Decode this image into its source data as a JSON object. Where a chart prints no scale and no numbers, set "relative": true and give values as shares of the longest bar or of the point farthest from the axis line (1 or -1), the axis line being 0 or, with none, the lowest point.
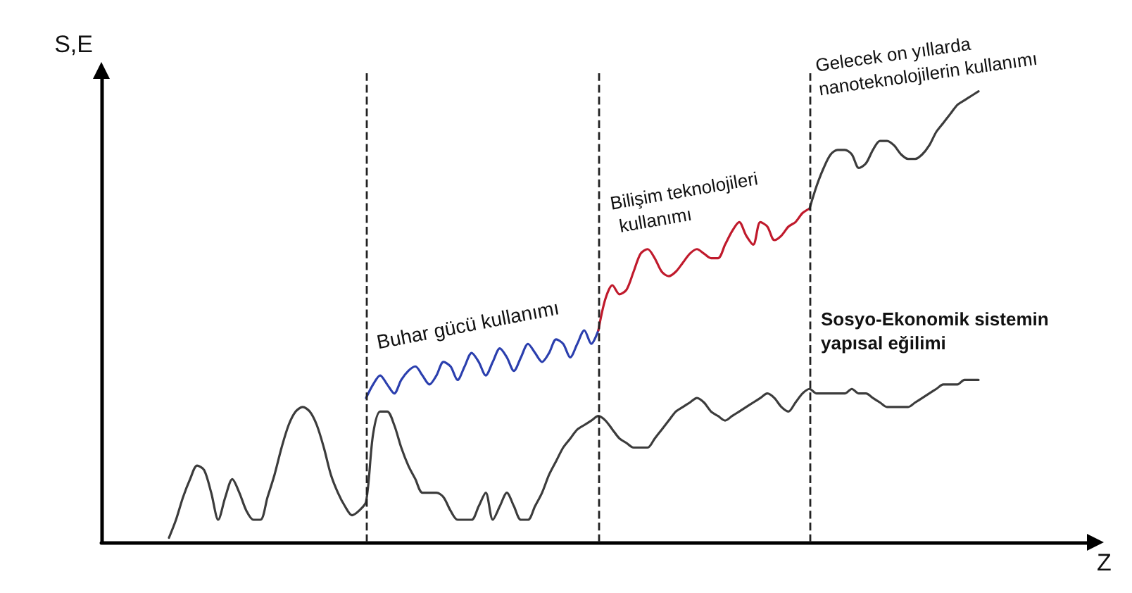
{
  "chart_data": {
    "type": "line",
    "relative": true,
    "xlabel": "Z",
    "ylabel": "S,E",
    "legend": false,
    "grid": false,
    "marker": "none",
    "line_style": "solid",
    "categories": [
      null,
      null,
      null,
      null,
      null,
      null,
      null,
      null,
      null,
      null,
      null,
      null,
      null,
      null,
      null,
      null,
      null,
      null,
      null,
      null,
      null,
      null,
      null,
      null,
      null,
      null,
      null,
      null,
      null,
      null,
      null,
      null,
      null,
      null,
      null,
      null,
      null,
      null,
      null,
      null,
      null,
      null,
      null,
      null,
      null,
      null,
      null,
      null,
      null,
      null,
      null,
      null,
      null,
      null,
      null,
      null,
      null,
      null,
      null,
      null,
      null,
      null,
      null,
      null,
      null,
      null,
      null,
      null,
      null,
      null,
      null,
      null,
      null,
      null,
      null,
      null,
      null,
      null,
      null,
      null,
      null,
      null,
      null,
      null,
      null,
      null,
      null,
      null,
      null,
      null,
      null,
      null,
      null,
      null,
      null,
      null,
      null,
      null,
      null,
      null,
      null,
      null,
      null,
      null,
      null,
      null,
      null,
      null,
      null,
      null,
      null,
      null,
      null,
      null,
      null,
      null
    ],
    "series": [
      {
        "name": "Sosyo-Ekonomik sistemin yapısal eğilimi",
        "color": "#3c3c3c",
        "values": [
          0.01,
          0.05,
          0.1,
          0.14,
          0.17,
          0.16,
          0.11,
          0.05,
          0.1,
          0.14,
          0.11,
          0.07,
          0.05,
          0.05,
          0.1,
          0.15,
          0.21,
          0.26,
          0.29,
          0.3,
          0.29,
          0.26,
          0.21,
          0.15,
          0.11,
          0.08,
          0.06,
          0.07,
          0.09,
          0.24,
          0.29,
          0.29,
          0.26,
          0.21,
          0.17,
          0.14,
          0.11,
          0.11,
          0.11,
          0.1,
          0.07,
          0.05,
          0.05,
          0.05,
          0.08,
          0.11,
          0.05,
          0.08,
          0.11,
          0.08,
          0.05,
          0.05,
          0.08,
          0.11,
          0.15,
          0.18,
          0.21,
          0.23,
          0.25,
          0.26,
          0.27,
          0.28,
          0.27,
          0.25,
          0.23,
          0.22,
          0.21,
          0.21,
          0.21,
          0.23,
          0.25,
          0.27,
          0.29,
          0.3,
          0.31,
          0.32,
          0.31,
          0.29,
          0.28,
          0.27,
          0.28,
          0.29,
          0.3,
          0.31,
          0.32,
          0.33,
          0.32,
          0.3,
          0.29,
          0.31,
          0.33,
          0.34,
          0.33,
          0.33,
          0.33,
          0.33,
          0.33,
          0.34,
          0.33,
          0.33,
          0.32,
          0.31,
          0.3,
          0.3,
          0.3,
          0.3,
          0.31,
          0.32,
          0.33,
          0.34,
          0.35,
          0.35,
          0.35,
          0.36,
          0.36,
          0.36
        ]
      },
      {
        "name": "Buhar gücü kullanımı",
        "color": "#2b3fae",
        "values": [
          null,
          null,
          null,
          null,
          null,
          null,
          null,
          null,
          null,
          null,
          null,
          null,
          null,
          null,
          null,
          null,
          null,
          null,
          null,
          null,
          null,
          null,
          null,
          null,
          null,
          null,
          null,
          null,
          0.32,
          0.35,
          0.37,
          0.35,
          0.33,
          0.36,
          0.38,
          0.39,
          0.37,
          0.35,
          0.37,
          0.4,
          0.39,
          0.36,
          0.39,
          0.42,
          0.4,
          0.37,
          0.4,
          0.43,
          0.41,
          0.38,
          0.41,
          0.44,
          0.42,
          0.4,
          0.42,
          0.45,
          0.44,
          0.41,
          0.44,
          0.47,
          0.44,
          0.47,
          null,
          null,
          null,
          null,
          null,
          null,
          null,
          null,
          null,
          null,
          null,
          null,
          null,
          null,
          null,
          null,
          null,
          null,
          null,
          null,
          null,
          null,
          null,
          null,
          null,
          null,
          null,
          null,
          null,
          null,
          null,
          null,
          null,
          null,
          null,
          null,
          null,
          null,
          null,
          null,
          null,
          null,
          null,
          null,
          null,
          null,
          null,
          null,
          null,
          null,
          null,
          null,
          null,
          null
        ]
      },
      {
        "name": "Bilişim teknolojileri kullanımı",
        "color": "#c01a2c",
        "values": [
          null,
          null,
          null,
          null,
          null,
          null,
          null,
          null,
          null,
          null,
          null,
          null,
          null,
          null,
          null,
          null,
          null,
          null,
          null,
          null,
          null,
          null,
          null,
          null,
          null,
          null,
          null,
          null,
          null,
          null,
          null,
          null,
          null,
          null,
          null,
          null,
          null,
          null,
          null,
          null,
          null,
          null,
          null,
          null,
          null,
          null,
          null,
          null,
          null,
          null,
          null,
          null,
          null,
          null,
          null,
          null,
          null,
          null,
          null,
          null,
          null,
          0.47,
          0.54,
          0.57,
          0.55,
          0.56,
          0.6,
          0.64,
          0.65,
          0.63,
          0.6,
          0.59,
          0.6,
          0.62,
          0.64,
          0.65,
          0.64,
          0.63,
          0.63,
          0.66,
          0.69,
          0.71,
          0.68,
          0.66,
          0.71,
          0.7,
          0.67,
          0.68,
          0.7,
          0.71,
          0.73,
          0.74,
          null,
          null,
          null,
          null,
          null,
          null,
          null,
          null,
          null,
          null,
          null,
          null,
          null,
          null,
          null,
          null,
          null,
          null,
          null,
          null,
          null,
          null,
          null,
          null
        ]
      },
      {
        "name": "Gelecek on yıllarda nanoteknolojilerin kullanımı",
        "color": "#3c3c3c",
        "values": [
          null,
          null,
          null,
          null,
          null,
          null,
          null,
          null,
          null,
          null,
          null,
          null,
          null,
          null,
          null,
          null,
          null,
          null,
          null,
          null,
          null,
          null,
          null,
          null,
          null,
          null,
          null,
          null,
          null,
          null,
          null,
          null,
          null,
          null,
          null,
          null,
          null,
          null,
          null,
          null,
          null,
          null,
          null,
          null,
          null,
          null,
          null,
          null,
          null,
          null,
          null,
          null,
          null,
          null,
          null,
          null,
          null,
          null,
          null,
          null,
          null,
          null,
          null,
          null,
          null,
          null,
          null,
          null,
          null,
          null,
          null,
          null,
          null,
          null,
          null,
          null,
          null,
          null,
          null,
          null,
          null,
          null,
          null,
          null,
          null,
          null,
          null,
          null,
          null,
          null,
          null,
          0.74,
          0.79,
          0.83,
          0.86,
          0.87,
          0.87,
          0.86,
          0.83,
          0.84,
          0.87,
          0.89,
          0.89,
          0.88,
          0.86,
          0.85,
          0.85,
          0.86,
          0.88,
          0.91,
          0.93,
          0.95,
          0.97,
          0.98,
          0.99,
          1
        ]
      }
    ]
  }
}
